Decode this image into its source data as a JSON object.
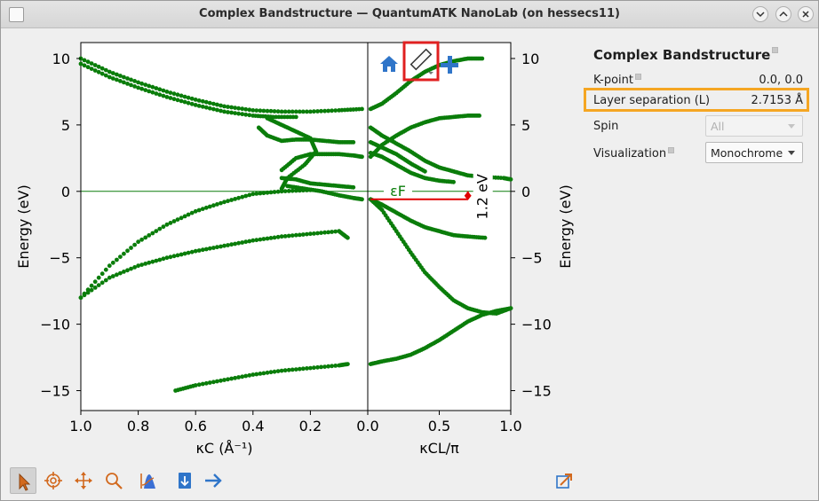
{
  "window": {
    "title": "Complex Bandstructure — QuantumATK NanoLab (on hessecs11)"
  },
  "panel": {
    "title": "Complex Bandstructure",
    "kpoint_label": "K-point",
    "kpoint_value": "0.0, 0.0",
    "layer_label": "Layer separation (L)",
    "layer_value": "2.7153 Å",
    "spin_label": "Spin",
    "spin_value": "All",
    "vis_label": "Visualization",
    "vis_value": "Monochrome"
  },
  "plot": {
    "left_xlabel": "κC (Å⁻¹)",
    "right_xlabel": "κCL/π",
    "ylabel": "Energy (eV)",
    "fermi_label": "εF",
    "gap_label": "1.2 eV",
    "left_xticks": [
      "1.0",
      "0.8",
      "0.6",
      "0.4",
      "0.2",
      "0.0"
    ],
    "right_xticks": [
      "0.0",
      "0.5",
      "1.0"
    ],
    "yticks": [
      "10",
      "5",
      "0",
      "−5",
      "−10",
      "−15"
    ]
  },
  "icons": {
    "home": "home-icon",
    "ruler": "ruler-icon",
    "plus": "plus-icon",
    "pointer": "pointer-icon",
    "target": "target-icon",
    "pan": "pan-icon",
    "zoom": "zoom-icon",
    "fermi": "fermi-tool-icon",
    "export": "export-icon",
    "arrow": "next-arrow-icon",
    "detach": "detach-icon"
  },
  "colors": {
    "band": "#0a7d0a",
    "gap_marker": "#e00000",
    "highlight": "#f5a623",
    "ruler_highlight": "#e02020"
  },
  "chart_data": {
    "type": "scatter",
    "ylabel": "Energy (eV)",
    "ylim": [
      -16.5,
      11.2
    ],
    "left_panel": {
      "xlabel": "κC (Å⁻¹)",
      "xlim": [
        1.0,
        0.0
      ],
      "series": [
        {
          "points": [
            [
              1.0,
              10.0
            ],
            [
              0.9,
              9.0
            ],
            [
              0.8,
              8.2
            ],
            [
              0.7,
              7.5
            ],
            [
              0.6,
              6.9
            ],
            [
              0.5,
              6.4
            ],
            [
              0.4,
              6.1
            ],
            [
              0.3,
              6.0
            ],
            [
              0.2,
              6.0
            ],
            [
              0.1,
              6.1
            ],
            [
              0.02,
              6.2
            ]
          ]
        },
        {
          "points": [
            [
              1.0,
              9.6
            ],
            [
              0.9,
              8.6
            ],
            [
              0.8,
              7.8
            ],
            [
              0.7,
              7.1
            ],
            [
              0.6,
              6.5
            ],
            [
              0.5,
              6.0
            ],
            [
              0.4,
              5.7
            ],
            [
              0.33,
              5.6
            ],
            [
              0.25,
              5.6
            ]
          ]
        },
        {
          "points": [
            [
              1.0,
              -8.0
            ],
            [
              0.9,
              -5.6
            ],
            [
              0.8,
              -3.8
            ],
            [
              0.7,
              -2.5
            ],
            [
              0.6,
              -1.5
            ],
            [
              0.5,
              -0.8
            ],
            [
              0.4,
              -0.2
            ],
            [
              0.3,
              0.0
            ],
            [
              0.2,
              0.1
            ]
          ]
        },
        {
          "points": [
            [
              1.0,
              -8.0
            ],
            [
              0.9,
              -6.5
            ],
            [
              0.8,
              -5.6
            ],
            [
              0.7,
              -5.0
            ],
            [
              0.6,
              -4.5
            ],
            [
              0.5,
              -4.1
            ],
            [
              0.4,
              -3.7
            ],
            [
              0.3,
              -3.4
            ],
            [
              0.2,
              -3.2
            ],
            [
              0.1,
              -3.0
            ],
            [
              0.07,
              -3.5
            ]
          ]
        },
        {
          "points": [
            [
              0.67,
              -15.0
            ],
            [
              0.6,
              -14.6
            ],
            [
              0.5,
              -14.2
            ],
            [
              0.4,
              -13.8
            ],
            [
              0.3,
              -13.5
            ],
            [
              0.2,
              -13.3
            ],
            [
              0.1,
              -13.1
            ],
            [
              0.07,
              -13.0
            ]
          ]
        },
        {
          "points": [
            [
              0.38,
              4.8
            ],
            [
              0.35,
              4.2
            ],
            [
              0.3,
              3.8
            ],
            [
              0.25,
              3.9
            ],
            [
              0.2,
              3.9
            ],
            [
              0.15,
              3.8
            ],
            [
              0.1,
              3.7
            ],
            [
              0.05,
              3.7
            ]
          ]
        },
        {
          "points": [
            [
              0.35,
              5.5
            ],
            [
              0.3,
              5.0
            ],
            [
              0.25,
              4.5
            ],
            [
              0.2,
              4.0
            ],
            [
              0.18,
              3.0
            ],
            [
              0.22,
              2.0
            ],
            [
              0.28,
              1.0
            ],
            [
              0.3,
              0.2
            ]
          ]
        },
        {
          "points": [
            [
              0.3,
              1.6
            ],
            [
              0.25,
              2.5
            ],
            [
              0.2,
              2.8
            ],
            [
              0.15,
              2.8
            ],
            [
              0.1,
              2.8
            ],
            [
              0.05,
              2.7
            ],
            [
              0.02,
              2.6
            ]
          ]
        },
        {
          "points": [
            [
              0.28,
              0.4
            ],
            [
              0.22,
              0.2
            ],
            [
              0.16,
              0.0
            ],
            [
              0.1,
              -0.3
            ],
            [
              0.05,
              -0.5
            ],
            [
              0.02,
              -0.6
            ]
          ]
        },
        {
          "points": [
            [
              0.3,
              1.0
            ],
            [
              0.25,
              0.9
            ],
            [
              0.2,
              0.6
            ],
            [
              0.15,
              0.5
            ],
            [
              0.1,
              0.4
            ],
            [
              0.05,
              0.3
            ]
          ]
        }
      ]
    },
    "right_panel": {
      "xlabel": "κCL/π",
      "xlim": [
        0.0,
        1.0
      ],
      "series": [
        {
          "points": [
            [
              0.02,
              6.2
            ],
            [
              0.1,
              6.6
            ],
            [
              0.2,
              7.4
            ],
            [
              0.3,
              8.3
            ],
            [
              0.4,
              9.0
            ],
            [
              0.5,
              9.5
            ],
            [
              0.6,
              9.8
            ],
            [
              0.7,
              10.0
            ],
            [
              0.8,
              10.0
            ]
          ]
        },
        {
          "points": [
            [
              0.02,
              2.6
            ],
            [
              0.1,
              3.5
            ],
            [
              0.2,
              4.2
            ],
            [
              0.3,
              4.8
            ],
            [
              0.4,
              5.2
            ],
            [
              0.5,
              5.5
            ],
            [
              0.6,
              5.6
            ],
            [
              0.7,
              5.7
            ],
            [
              0.78,
              5.7
            ]
          ]
        },
        {
          "points": [
            [
              0.02,
              4.8
            ],
            [
              0.1,
              4.2
            ],
            [
              0.2,
              3.6
            ],
            [
              0.3,
              3.0
            ],
            [
              0.4,
              2.3
            ],
            [
              0.5,
              1.8
            ],
            [
              0.6,
              1.5
            ],
            [
              0.7,
              1.2
            ],
            [
              0.8,
              1.1
            ],
            [
              0.95,
              1.0
            ],
            [
              1.0,
              0.9
            ]
          ]
        },
        {
          "points": [
            [
              0.02,
              2.9
            ],
            [
              0.1,
              2.6
            ],
            [
              0.2,
              2.0
            ],
            [
              0.3,
              1.4
            ],
            [
              0.4,
              1.0
            ],
            [
              0.5,
              0.8
            ],
            [
              0.6,
              0.7
            ]
          ]
        },
        {
          "points": [
            [
              0.02,
              3.7
            ],
            [
              0.1,
              3.3
            ],
            [
              0.2,
              2.8
            ],
            [
              0.3,
              2.1
            ],
            [
              0.4,
              1.5
            ]
          ]
        },
        {
          "points": [
            [
              0.02,
              -0.6
            ],
            [
              0.1,
              -1.0
            ],
            [
              0.2,
              -1.6
            ],
            [
              0.3,
              -2.2
            ],
            [
              0.4,
              -2.7
            ],
            [
              0.5,
              -3.0
            ],
            [
              0.6,
              -3.3
            ],
            [
              0.7,
              -3.4
            ],
            [
              0.82,
              -3.5
            ]
          ]
        },
        {
          "points": [
            [
              0.02,
              -0.6
            ],
            [
              0.1,
              -1.4
            ],
            [
              0.2,
              -3.0
            ],
            [
              0.3,
              -4.6
            ],
            [
              0.4,
              -6.1
            ],
            [
              0.5,
              -7.2
            ],
            [
              0.6,
              -8.2
            ],
            [
              0.7,
              -8.8
            ],
            [
              0.8,
              -9.1
            ],
            [
              0.9,
              -9.2
            ],
            [
              1.0,
              -8.8
            ]
          ]
        },
        {
          "points": [
            [
              0.02,
              -13.0
            ],
            [
              0.1,
              -12.8
            ],
            [
              0.2,
              -12.6
            ],
            [
              0.3,
              -12.3
            ],
            [
              0.4,
              -11.8
            ],
            [
              0.5,
              -11.2
            ],
            [
              0.6,
              -10.5
            ],
            [
              0.7,
              -9.8
            ],
            [
              0.8,
              -9.3
            ],
            [
              0.9,
              -9.0
            ],
            [
              1.0,
              -8.8
            ]
          ]
        }
      ]
    },
    "fermi_level": 0.0,
    "gap": {
      "label": "1.2 eV",
      "x_start": 0.02,
      "x_end": 0.7,
      "energy": -0.6
    }
  }
}
